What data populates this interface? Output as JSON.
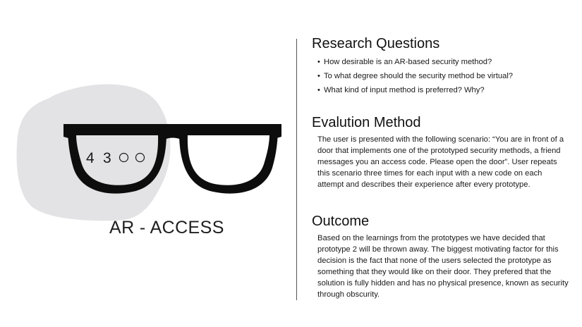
{
  "illustration": {
    "code_digits": [
      "4",
      "3"
    ],
    "empty_slots": 2,
    "title": "AR - ACCESS"
  },
  "research": {
    "heading": "Research Questions",
    "items": [
      "How desirable is an AR-based security method?",
      "To what degree should the security method be virtual?",
      "What kind of input method is preferred? Why?"
    ]
  },
  "evaluation": {
    "heading": "Evalution Method",
    "body": "The user is presented with the following scenario: “You are in front of a door that implements one of the prototyped security methods, a friend messages you an access code. Please open the door”. User repeats this scenario three times for each input with a new code on each attempt and describes their experience after every prototype."
  },
  "outcome": {
    "heading": "Outcome",
    "body": "Based on the learnings from the prototypes we have decided that prototype 2 will be thrown away. The biggest motivating factor for this decision is the fact that none of the users selected the prototype as something that they would like on their door. They prefered that the solution is fully hidden and has no physical presence, known as security through obscurity."
  },
  "colors": {
    "blob": "#e3e3e5",
    "frame": "#0d0d0d",
    "divider": "#555555"
  }
}
